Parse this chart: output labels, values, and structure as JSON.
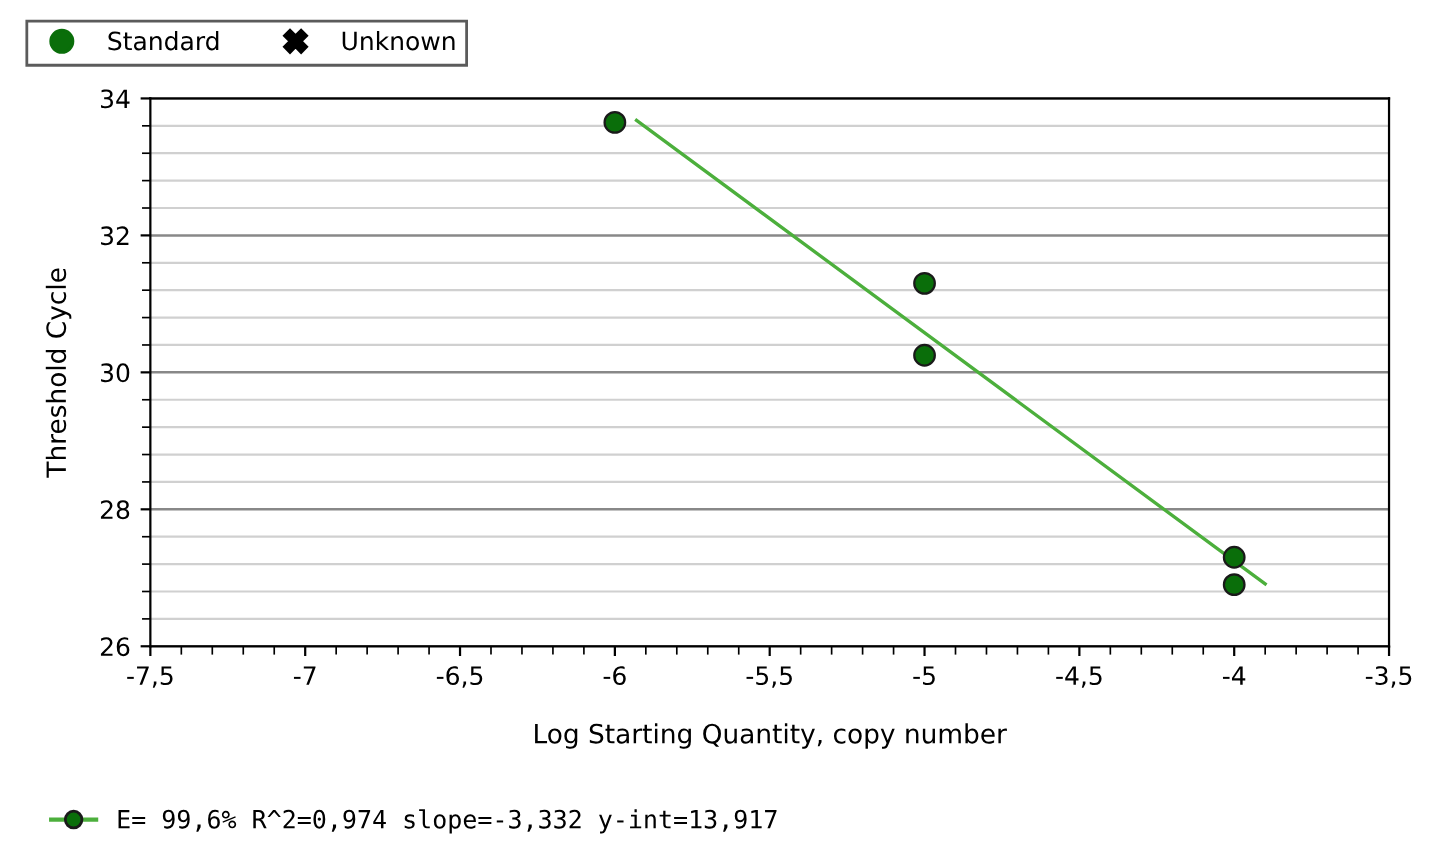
{
  "chart_data": {
    "type": "scatter",
    "xlabel": "Log Starting Quantity, copy number",
    "ylabel": "Threshold Cycle",
    "xlim": [
      -7.5,
      -3.5
    ],
    "xticks": [
      {
        "value": -7.5,
        "label": "-7,5"
      },
      -7,
      {
        "value": -6.5,
        "label": "-6,5"
      },
      -6,
      {
        "value": -5.5,
        "label": "-5,5"
      },
      -5,
      {
        "value": -4.5,
        "label": "-4,5"
      },
      -4,
      {
        "value": -3.5,
        "label": "-3,5"
      }
    ],
    "ylim": [
      26,
      34
    ],
    "yticks": [
      26,
      28,
      30,
      32,
      34
    ],
    "grid": "y",
    "legend": "top left",
    "series": [
      {
        "name": "Standard",
        "marker": "circle",
        "color": "#0a6e0a",
        "x": [
          -6,
          -5,
          -5,
          -4,
          -4
        ],
        "values": [
          33.65,
          31.3,
          30.25,
          27.3,
          26.9
        ]
      },
      {
        "name": "Unknown",
        "marker": "cross",
        "color": "#000000"
      },
      {
        "type": "line",
        "marker": "none",
        "color": "#4caf3c",
        "x": [
          -5.93,
          -3.9
        ],
        "values": [
          33.68,
          26.91
        ]
      }
    ],
    "annotations": [
      "E= 99,6% R^2=0,974 slope=-3,332 y-int=13,917"
    ]
  }
}
